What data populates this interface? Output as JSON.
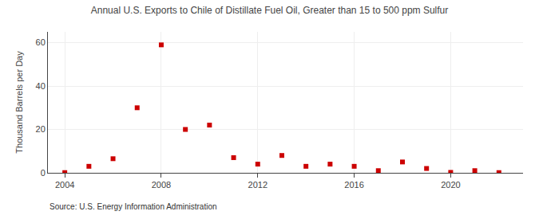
{
  "chart_data": {
    "type": "scatter",
    "title": "Annual U.S. Exports to Chile of Distillate Fuel Oil, Greater than 15 to 500 ppm Sulfur",
    "ylabel": "Thousand Barrels per Day",
    "annotations": [
      "Source: U.S. Energy Information Administration"
    ],
    "x": [
      2004,
      2005,
      2006,
      2007,
      2008,
      2009,
      2010,
      2011,
      2012,
      2013,
      2014,
      2015,
      2016,
      2017,
      2018,
      2019,
      2020,
      2021,
      2022
    ],
    "values": [
      0.1,
      3.0,
      6.5,
      30.0,
      59.0,
      20.0,
      22.0,
      7.0,
      4.0,
      8.0,
      3.0,
      4.0,
      3.0,
      1.0,
      5.0,
      2.0,
      0.2,
      1.0,
      0.1
    ],
    "color": "#cc0000",
    "marker": "square",
    "xlim": [
      2003.3,
      2023.0
    ],
    "xticks": [
      2004,
      2008,
      2012,
      2016,
      2020
    ],
    "ylim": [
      0,
      65
    ],
    "yticks": [
      0,
      20,
      40,
      60
    ],
    "grid": true
  }
}
